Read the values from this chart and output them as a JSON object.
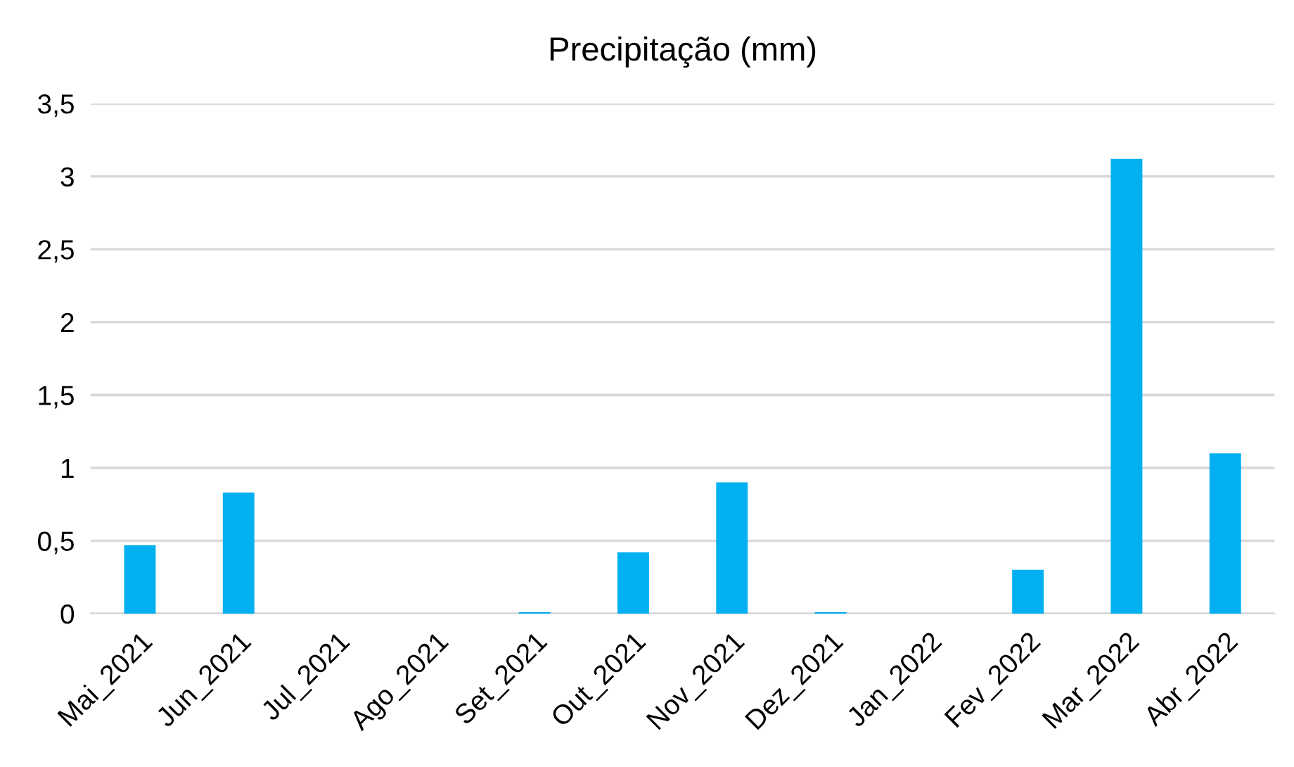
{
  "chart_data": {
    "type": "bar",
    "title": "Precipitação (mm)",
    "categories": [
      "Mai_2021",
      "Jun_2021",
      "Jul_2021",
      "Ago_2021",
      "Set_2021",
      "Out_2021",
      "Nov_2021",
      "Dez_2021",
      "Jan_2022",
      "Fev_2022",
      "Mar_2022",
      "Abr_2022"
    ],
    "values": [
      0.47,
      0.83,
      0,
      0,
      0.01,
      0.42,
      0.9,
      0.01,
      0,
      0.3,
      3.12,
      1.1
    ],
    "color": "#00b0f0",
    "ylim": [
      0,
      3.5
    ],
    "yticks": [
      {
        "value": 0,
        "label": "0"
      },
      {
        "value": 0.5,
        "label": "0,5"
      },
      {
        "value": 1,
        "label": "1"
      },
      {
        "value": 1.5,
        "label": "1,5"
      },
      {
        "value": 2,
        "label": "2"
      },
      {
        "value": 2.5,
        "label": "2,5"
      },
      {
        "value": 3,
        "label": "3"
      },
      {
        "value": 3.5,
        "label": "3,5"
      }
    ],
    "grid": "y"
  }
}
